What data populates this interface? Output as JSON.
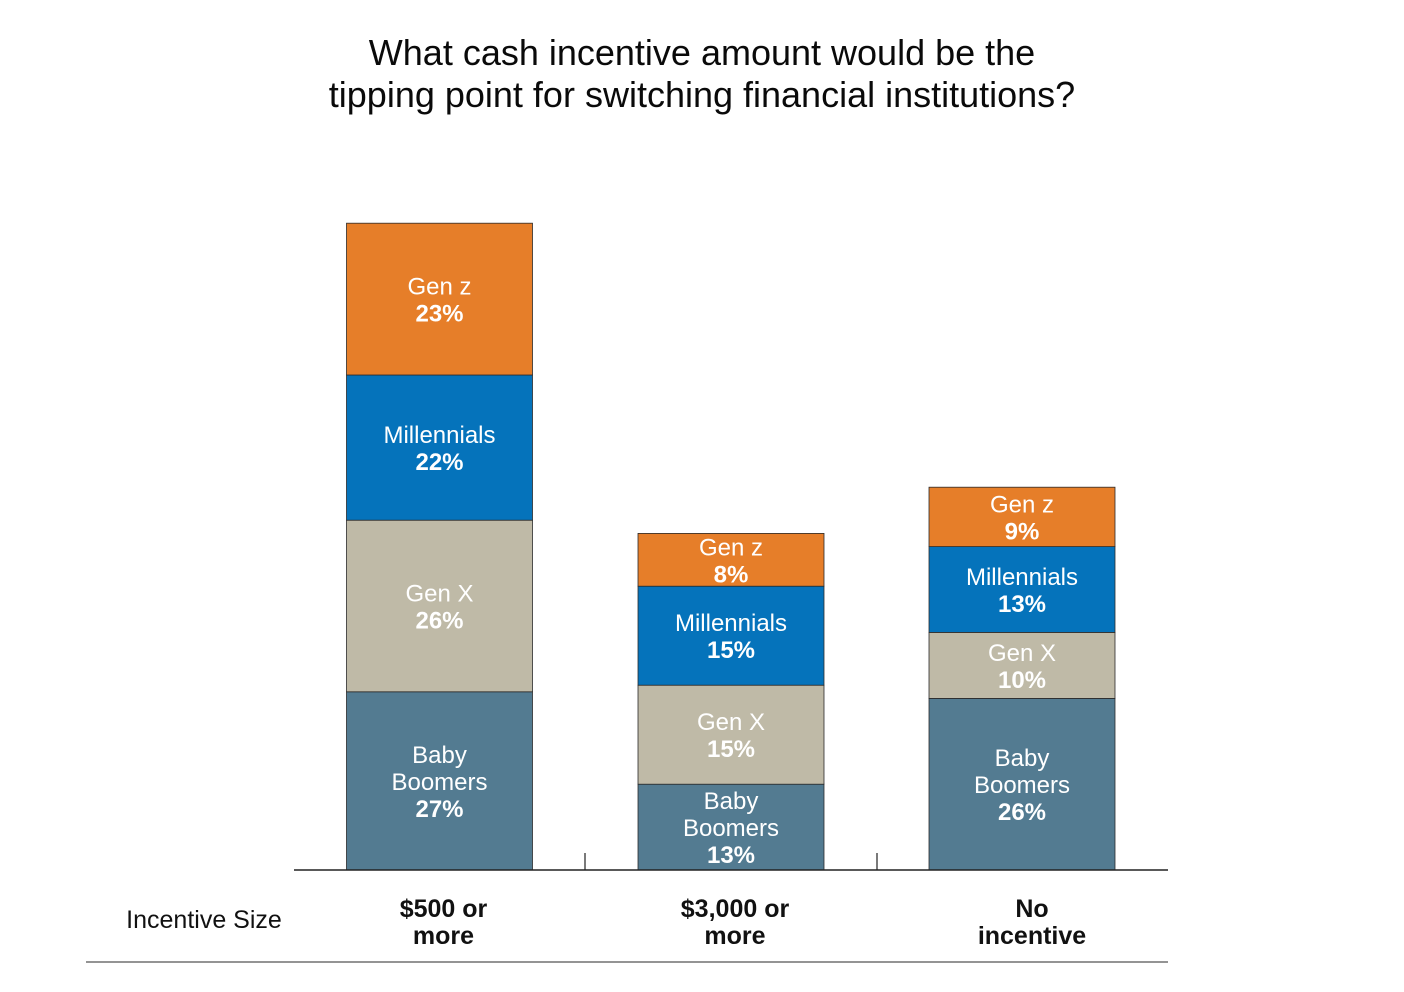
{
  "chart_data": {
    "type": "bar",
    "stacked": true,
    "title": [
      "What cash incentive amount would be the",
      "tipping point for switching financial institutions?"
    ],
    "xlabel": "Incentive Size",
    "categories": [
      [
        "$500 or",
        "more"
      ],
      [
        "$3,000 or",
        "more"
      ],
      [
        "No",
        "incentive"
      ]
    ],
    "series": [
      {
        "name": "Baby Boomers",
        "label": [
          "Baby",
          "Boomers"
        ],
        "values": [
          27,
          13,
          26
        ]
      },
      {
        "name": "Gen X",
        "label": [
          "Gen X"
        ],
        "values": [
          26,
          15,
          10
        ]
      },
      {
        "name": "Millennials",
        "label": [
          "Millennials"
        ],
        "values": [
          22,
          15,
          13
        ]
      },
      {
        "name": "Gen z",
        "label": [
          "Gen z"
        ],
        "values": [
          23,
          8,
          9
        ]
      }
    ],
    "labels": [
      [
        [
          "Baby",
          "Boomers",
          "27%"
        ],
        [
          "Gen X",
          "26%"
        ],
        [
          "Millennials",
          "22%"
        ],
        [
          "Gen z",
          "23%"
        ]
      ],
      [
        [
          "Baby",
          "Boomers",
          "13%"
        ],
        [
          "Gen X",
          "15%"
        ],
        [
          "Millennials",
          "15%"
        ],
        [
          "Gen z",
          "8%"
        ]
      ],
      [
        [
          "Baby",
          "Boomers",
          "26%"
        ],
        [
          "Gen X",
          "10%"
        ],
        [
          "Millennials",
          "13%"
        ],
        [
          "Gen z",
          "9%"
        ]
      ]
    ],
    "colors": {
      "Baby Boomers": "#537b91",
      "Gen X": "#bfbaa7",
      "Millennials": "#0573bb",
      "Gen z": "#e67e29"
    },
    "unit": "%",
    "grid": false,
    "legend": "none"
  }
}
